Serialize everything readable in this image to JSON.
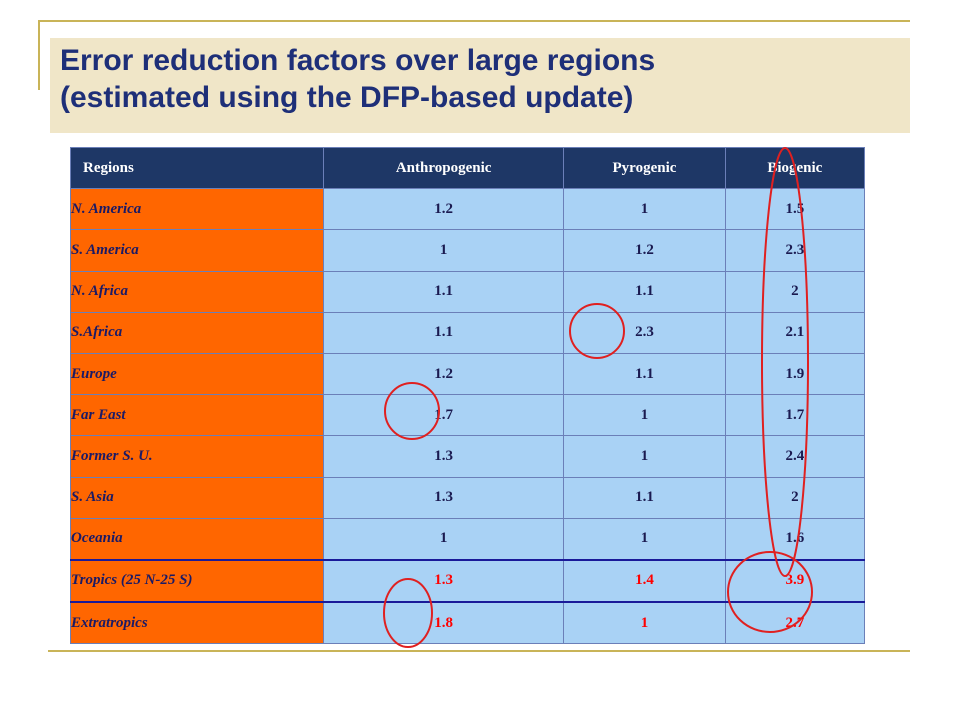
{
  "slide": {
    "title_line1": "Error reduction factors over large regions",
    "title_line2": "(estimated using the DFP-based update)"
  },
  "table": {
    "headers": [
      "Regions",
      "Anthropogenic",
      "Pyrogenic",
      "Biogenic"
    ],
    "rows": [
      {
        "region": "N. America",
        "values": [
          "1.2",
          "1",
          "1.5"
        ]
      },
      {
        "region": "S. America",
        "values": [
          "1",
          "1.2",
          "2.3"
        ]
      },
      {
        "region": "N. Africa",
        "values": [
          "1.1",
          "1.1",
          "2"
        ]
      },
      {
        "region": "S.Africa",
        "values": [
          "1.1",
          "2.3",
          "2.1"
        ]
      },
      {
        "region": "Europe",
        "values": [
          "1.2",
          "1.1",
          "1.9"
        ]
      },
      {
        "region": "Far East",
        "values": [
          "1.7",
          "1",
          "1.7"
        ]
      },
      {
        "region": "Former S. U.",
        "values": [
          "1.3",
          "1",
          "2.4"
        ]
      },
      {
        "region": "S. Asia",
        "values": [
          "1.3",
          "1.1",
          "2"
        ]
      },
      {
        "region": "Oceania",
        "values": [
          "1",
          "1",
          "1.6"
        ]
      },
      {
        "region": "Tropics (25 N-25 S)",
        "values": [
          "1.3",
          "1.4",
          "3.9"
        ]
      },
      {
        "region": "Extratropics",
        "values": [
          "1.8",
          "1",
          "2.7"
        ]
      }
    ]
  },
  "colors": {
    "title": "#1e2f78",
    "header_bg": "#1e3766",
    "region_bg": "#ff6600",
    "cell_bg": "#a9d2f5",
    "highlight_text": "#ff0000",
    "circle": "#e02020"
  }
}
